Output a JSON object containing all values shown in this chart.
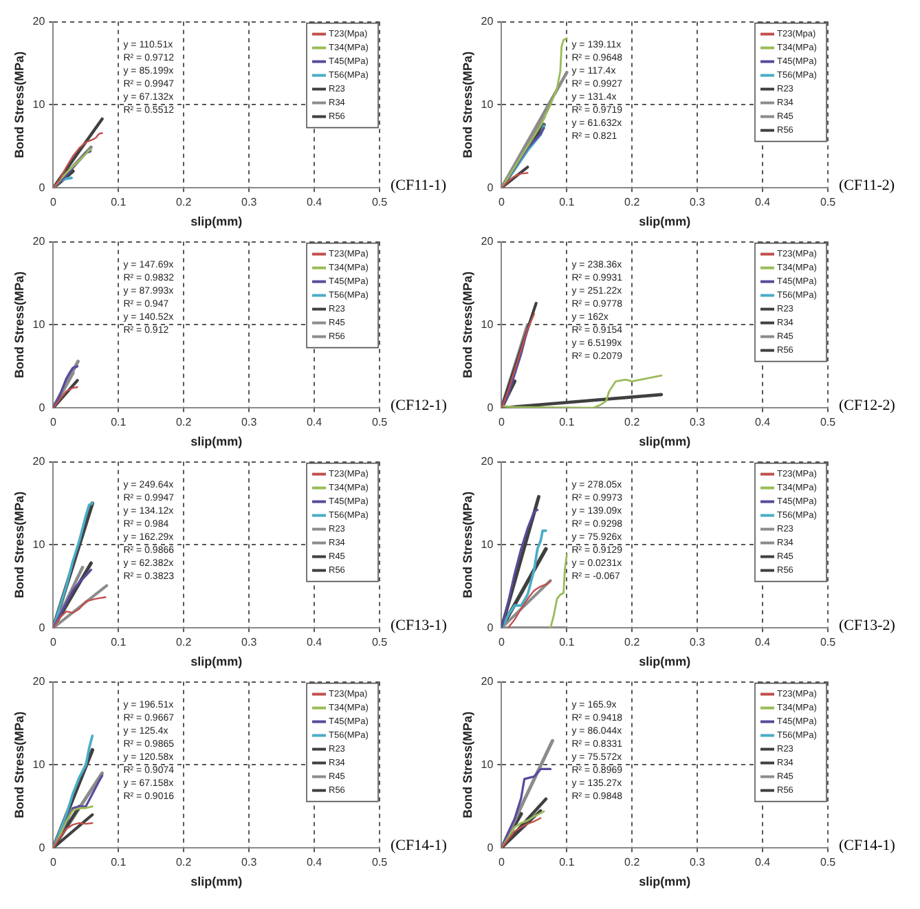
{
  "chart_data": [
    {
      "type": "line",
      "title": "(CF11-1)",
      "xlabel": "slip(mm)",
      "ylabel": "Bond Stress(MPa)",
      "xlim": [
        0,
        0.5
      ],
      "xticks": [
        0,
        0.1,
        0.2,
        0.3,
        0.4,
        0.5
      ],
      "ylim": [
        0,
        20
      ],
      "yticks": [
        0,
        10,
        20
      ],
      "grid": true,
      "legend": "top right",
      "marker": "none",
      "annotations": [
        "y = 110.51x",
        "R² = 0.9712",
        "y = 85.199x",
        "R² = 0.9947",
        "y = 67.132x",
        "R² = 0.5512"
      ],
      "series": [
        {
          "name": "T23(Mpa)",
          "color": "#c0504d",
          "x": [
            0,
            0.01,
            0.02,
            0.03,
            0.04,
            0.05,
            0.06,
            0.065,
            0.07,
            0.075
          ],
          "values": [
            0,
            1,
            2.5,
            3.8,
            4.8,
            5.5,
            5.8,
            6.0,
            6.5,
            6.6
          ]
        },
        {
          "name": "T34(MPa)",
          "color": "#9bbb59",
          "x": [
            0,
            0.02,
            0.04,
            0.055,
            0.058
          ],
          "values": [
            0,
            1.8,
            3.3,
            4.5,
            4.6
          ]
        },
        {
          "name": "T45(MPa)",
          "color": "#5a4a9c",
          "x": [
            0,
            0.02,
            0.05,
            0.057
          ],
          "values": [
            0,
            1.5,
            4.2,
            4.4
          ]
        },
        {
          "name": "T56(MPa)",
          "color": "#4bacc6",
          "x": [
            0,
            0.01,
            0.02,
            0.028
          ],
          "values": [
            0,
            0.8,
            1.1,
            1.2
          ]
        },
        {
          "name": "R23",
          "color": "#404040",
          "x": [
            0,
            0.075
          ],
          "values": [
            0,
            8.3
          ]
        },
        {
          "name": "R34",
          "color": "#8c8c8c",
          "x": [
            0,
            0.058
          ],
          "values": [
            0,
            4.9
          ]
        },
        {
          "name": "R56",
          "color": "#404040",
          "x": [
            0,
            0.03
          ],
          "values": [
            0,
            2.0
          ]
        }
      ]
    },
    {
      "type": "line",
      "title": "(CF11-2)",
      "xlabel": "slip(mm)",
      "ylabel": "Bond Stress(MPa)",
      "xlim": [
        0,
        0.5
      ],
      "xticks": [
        0,
        0.1,
        0.2,
        0.3,
        0.4,
        0.5
      ],
      "ylim": [
        0,
        20
      ],
      "yticks": [
        0,
        10,
        20
      ],
      "grid": true,
      "legend": "top right",
      "marker": "none",
      "annotations": [
        "y = 139.11x",
        "R² = 0.9648",
        "y = 117.4x",
        "R² = 0.9927",
        "y = 131.4x",
        "R² = 0.9719",
        "y = 61.632x",
        "R² = 0.821"
      ],
      "series": [
        {
          "name": "T23(Mpa)",
          "color": "#c0504d",
          "x": [
            0,
            0.01,
            0.02,
            0.03,
            0.04
          ],
          "values": [
            0,
            0.8,
            1.4,
            1.7,
            1.8
          ]
        },
        {
          "name": "T34(MPa)",
          "color": "#9bbb59",
          "x": [
            0,
            0.02,
            0.04,
            0.06,
            0.075,
            0.085,
            0.09,
            0.092,
            0.095,
            0.1
          ],
          "values": [
            0,
            2.5,
            5,
            7.5,
            10,
            12,
            14,
            17,
            17.8,
            18
          ]
        },
        {
          "name": "T45(MPa)",
          "color": "#5a4a9c",
          "x": [
            0,
            0.02,
            0.04,
            0.06,
            0.065
          ],
          "values": [
            0,
            2.4,
            4.8,
            6.5,
            7.2
          ]
        },
        {
          "name": "T56(MPa)",
          "color": "#4bacc6",
          "x": [
            0,
            0.02,
            0.04,
            0.06,
            0.065
          ],
          "values": [
            0,
            2.2,
            4.5,
            6.4,
            7.5
          ]
        },
        {
          "name": "R23",
          "color": "#404040",
          "x": [
            0,
            0.04
          ],
          "values": [
            0,
            2.5
          ]
        },
        {
          "name": "R34",
          "color": "#8c8c8c",
          "x": [
            0,
            0.1
          ],
          "values": [
            0,
            13.9
          ]
        },
        {
          "name": "R45",
          "color": "#8c8c8c",
          "x": [
            0,
            0.065
          ],
          "values": [
            0,
            8.5
          ]
        },
        {
          "name": "R56",
          "color": "#404040",
          "x": [
            0,
            0.065
          ],
          "values": [
            0,
            7.6
          ]
        }
      ]
    },
    {
      "type": "line",
      "title": "(CF12-1)",
      "xlabel": "slip(mm)",
      "ylabel": "Bond Stress(MPa)",
      "xlim": [
        0,
        0.5
      ],
      "xticks": [
        0,
        0.1,
        0.2,
        0.3,
        0.4,
        0.5
      ],
      "ylim": [
        0,
        20
      ],
      "yticks": [
        0,
        10,
        20
      ],
      "grid": true,
      "legend": "top right",
      "marker": "none",
      "annotations": [
        "y = 147.69x",
        "R² = 0.9832",
        "y = 87.993x",
        "R² = 0.947",
        "y = 140.52x",
        "R² = 0.912"
      ],
      "series": [
        {
          "name": "T23(MPa)",
          "color": "#c0504d",
          "x": [
            0,
            0.01,
            0.02,
            0.03,
            0.037
          ],
          "values": [
            0,
            1,
            2,
            2.4,
            2.5
          ]
        },
        {
          "name": "T34(MPa)",
          "color": "#9bbb59"
        },
        {
          "name": "T45(MPa)",
          "color": "#5a4a9c",
          "x": [
            0,
            0.01,
            0.02,
            0.025,
            0.03,
            0.037
          ],
          "values": [
            0,
            1.5,
            3.5,
            4.2,
            4.8,
            5.0
          ]
        },
        {
          "name": "T56(MPa)",
          "color": "#4bacc6"
        },
        {
          "name": "R23",
          "color": "#404040",
          "x": [
            0,
            0.037
          ],
          "values": [
            0,
            3.3
          ]
        },
        {
          "name": "R45",
          "color": "#8c8c8c",
          "x": [
            0,
            0.038
          ],
          "values": [
            0,
            5.6
          ]
        },
        {
          "name": "R56",
          "color": "#8c8c8c",
          "x": [
            0,
            0.03
          ],
          "values": [
            0,
            4.2
          ]
        }
      ]
    },
    {
      "type": "line",
      "title": "(CF12-2)",
      "xlabel": "slip(mm)",
      "ylabel": "Bond Stress(MPa)",
      "xlim": [
        0,
        0.5
      ],
      "xticks": [
        0,
        0.1,
        0.2,
        0.3,
        0.4,
        0.5
      ],
      "ylim": [
        0,
        20
      ],
      "yticks": [
        0,
        10,
        20
      ],
      "grid": true,
      "legend": "top right",
      "marker": "none",
      "annotations": [
        "y = 238.36x",
        "R² = 0.9931",
        "y = 251.22x",
        "R² = 0.9778",
        "y = 162x",
        "R² = 0.9154",
        "y = 6.5199x",
        "R² = 0.2079"
      ],
      "series": [
        {
          "name": "T23(MPa)",
          "color": "#c0504d",
          "x": [
            0,
            0.01,
            0.02,
            0.03,
            0.04,
            0.05
          ],
          "values": [
            0,
            2,
            4.5,
            7,
            9.5,
            11.3
          ]
        },
        {
          "name": "T34(MPa)",
          "color": "#9bbb59",
          "x": [
            0,
            0.02,
            0.14,
            0.15,
            0.16,
            0.165,
            0.175,
            0.19,
            0.2,
            0.22,
            0.245
          ],
          "values": [
            0.2,
            0.1,
            0,
            0.3,
            0.8,
            2,
            3.2,
            3.4,
            3.2,
            3.5,
            3.9
          ]
        },
        {
          "name": "T45(MPa)",
          "color": "#5a4a9c",
          "x": [
            0,
            0.01,
            0.02,
            0.03,
            0.04
          ],
          "values": [
            0,
            1.5,
            4,
            6.5,
            9.5
          ]
        },
        {
          "name": "T56(MPa)",
          "color": "#4bacc6"
        },
        {
          "name": "R23",
          "color": "#404040",
          "x": [
            0,
            0.053
          ],
          "values": [
            0,
            12.6
          ]
        },
        {
          "name": "R34",
          "color": "#404040",
          "x": [
            0,
            0.245
          ],
          "values": [
            0,
            1.6
          ]
        },
        {
          "name": "R45",
          "color": "#8c8c8c",
          "x": [
            0,
            0.04
          ],
          "values": [
            0,
            10.0
          ]
        },
        {
          "name": "R56",
          "color": "#404040",
          "x": [
            0,
            0.02
          ],
          "values": [
            0,
            3.2
          ]
        }
      ]
    },
    {
      "type": "line",
      "title": "(CF13-1)",
      "xlabel": "slip(mm)",
      "ylabel": "Bond Stress(MPa)",
      "xlim": [
        0,
        0.5
      ],
      "xticks": [
        0,
        0.1,
        0.2,
        0.3,
        0.4,
        0.5
      ],
      "ylim": [
        0,
        20
      ],
      "yticks": [
        0,
        10,
        20
      ],
      "grid": true,
      "legend": "top right",
      "marker": "none",
      "annotations": [
        "y = 249.64x",
        "R² = 0.9947",
        "y = 134.12x",
        "R² = 0.984",
        "y = 162.29x",
        "R² = 0.9866",
        "y = 62.382x",
        "R² = 0.3823"
      ],
      "series": [
        {
          "name": "T23(MPa)",
          "color": "#c0504d",
          "x": [
            0,
            0.01,
            0.02,
            0.03,
            0.04,
            0.05,
            0.065,
            0.08
          ],
          "values": [
            0,
            1.2,
            2,
            1.8,
            2.3,
            3.2,
            3.5,
            3.7
          ]
        },
        {
          "name": "T34(MPa)",
          "color": "#9bbb59"
        },
        {
          "name": "T45(MPa)",
          "color": "#5a4a9c",
          "x": [
            0,
            0.01,
            0.02,
            0.03,
            0.04,
            0.05,
            0.058
          ],
          "values": [
            0,
            1.5,
            3,
            4.5,
            5.5,
            6.3,
            7
          ]
        },
        {
          "name": "T56(MPa)",
          "color": "#4bacc6",
          "x": [
            0,
            0.01,
            0.02,
            0.03,
            0.04,
            0.05,
            0.055,
            0.06
          ],
          "values": [
            0,
            2.5,
            5,
            8,
            10.5,
            13.5,
            14.8,
            15
          ]
        },
        {
          "name": "R23",
          "color": "#8c8c8c",
          "x": [
            0,
            0.082
          ],
          "values": [
            0,
            5.1
          ]
        },
        {
          "name": "R34",
          "color": "#8c8c8c",
          "x": [
            0,
            0.045
          ],
          "values": [
            0,
            7.3
          ]
        },
        {
          "name": "R45",
          "color": "#404040",
          "x": [
            0,
            0.058
          ],
          "values": [
            0,
            7.8
          ]
        },
        {
          "name": "R56",
          "color": "#404040",
          "x": [
            0,
            0.06
          ],
          "values": [
            0,
            15.0
          ]
        }
      ]
    },
    {
      "type": "line",
      "title": "(CF13-2)",
      "xlabel": "slip(mm)",
      "ylabel": "Bond Stress(MPa)",
      "xlim": [
        0,
        0.5
      ],
      "xticks": [
        0,
        0.1,
        0.2,
        0.3,
        0.4,
        0.5
      ],
      "ylim": [
        0,
        20
      ],
      "yticks": [
        0,
        10,
        20
      ],
      "grid": true,
      "legend": "top right",
      "marker": "none",
      "annotations": [
        "y = 278.05x",
        "R² = 0.9973",
        "y = 139.09x",
        "R² = 0.9298",
        "y = 75.926x",
        "R² = 0.9129",
        "y = 0.0231x",
        "R² = -0.067"
      ],
      "series": [
        {
          "name": "T23(MPa)",
          "color": "#c0504d",
          "x": [
            0.01,
            0.02,
            0.03,
            0.04,
            0.05,
            0.06,
            0.07,
            0.075
          ],
          "values": [
            0,
            1,
            2.3,
            3.5,
            4.5,
            5,
            5.3,
            5.6
          ]
        },
        {
          "name": "T34(MPa)",
          "color": "#9bbb59",
          "x": [
            0.075,
            0.08,
            0.085,
            0.09,
            0.095,
            0.097,
            0.1
          ],
          "values": [
            0,
            1.5,
            3.5,
            4,
            4.2,
            7,
            8.8
          ]
        },
        {
          "name": "T45(MPa)",
          "color": "#5a4a9c",
          "x": [
            0,
            0.01,
            0.02,
            0.03,
            0.04,
            0.05,
            0.055
          ],
          "values": [
            0,
            3,
            6.5,
            9.5,
            12,
            14,
            14.2
          ]
        },
        {
          "name": "T56(MPa)",
          "color": "#4bacc6",
          "x": [
            0,
            0.01,
            0.02,
            0.03,
            0.04,
            0.05,
            0.055,
            0.06,
            0.063,
            0.068
          ],
          "values": [
            0,
            1.5,
            2.7,
            2.7,
            4,
            7,
            9.5,
            10.5,
            11.7,
            11.7
          ]
        },
        {
          "name": "R23",
          "color": "#8c8c8c",
          "x": [
            0,
            0.075
          ],
          "values": [
            0,
            5.7
          ]
        },
        {
          "name": "R34",
          "color": "#8c8c8c",
          "x": [
            0,
            0.1
          ],
          "values": [
            0,
            0.0
          ]
        },
        {
          "name": "R45",
          "color": "#404040",
          "x": [
            0,
            0.057
          ],
          "values": [
            0,
            15.8
          ]
        },
        {
          "name": "R56",
          "color": "#404040",
          "x": [
            0,
            0.068
          ],
          "values": [
            0,
            9.5
          ]
        }
      ]
    },
    {
      "type": "line",
      "title": "(CF14-1)",
      "xlabel": "slip(mm)",
      "ylabel": "Bond Stress(MPa)",
      "xlim": [
        0,
        0.5
      ],
      "xticks": [
        0,
        0.1,
        0.2,
        0.3,
        0.4,
        0.5
      ],
      "ylim": [
        0,
        20
      ],
      "yticks": [
        0,
        10,
        20
      ],
      "grid": true,
      "legend": "top right",
      "marker": "none",
      "annotations": [
        "y = 196.51x",
        "R² = 0.9667",
        "y = 125.4x",
        "R² = 0.9865",
        "y = 120.58x",
        "R² = 0.9074",
        "y = 67.158x",
        "R² = 0.9016"
      ],
      "series": [
        {
          "name": "T23(Mpa)",
          "color": "#c0504d",
          "x": [
            0,
            0.01,
            0.02,
            0.03,
            0.04,
            0.05,
            0.06
          ],
          "values": [
            0,
            1.2,
            2.3,
            2.8,
            3,
            2.9,
            3
          ]
        },
        {
          "name": "T34(MPa)",
          "color": "#9bbb59",
          "x": [
            0,
            0.01,
            0.02,
            0.03,
            0.04,
            0.05,
            0.06
          ],
          "values": [
            0,
            1.5,
            3.2,
            4.5,
            4.8,
            4.8,
            5
          ]
        },
        {
          "name": "T45(MPa)",
          "color": "#5a4a9c",
          "x": [
            0,
            0.01,
            0.02,
            0.03,
            0.04,
            0.05,
            0.06,
            0.07,
            0.075
          ],
          "values": [
            0,
            1.5,
            3,
            4.8,
            5,
            5,
            6.5,
            8,
            8.7
          ]
        },
        {
          "name": "T56(MPa)",
          "color": "#4bacc6",
          "x": [
            0,
            0.01,
            0.02,
            0.03,
            0.04,
            0.05,
            0.055,
            0.06
          ],
          "values": [
            0,
            2,
            4,
            6.5,
            8.5,
            10,
            12,
            13.5
          ]
        },
        {
          "name": "R23",
          "color": "#404040",
          "x": [
            0,
            0.06
          ],
          "values": [
            0,
            4.0
          ]
        },
        {
          "name": "R34",
          "color": "#404040",
          "x": [
            0,
            0.04
          ],
          "values": [
            0,
            5.0
          ]
        },
        {
          "name": "R45",
          "color": "#8c8c8c",
          "x": [
            0,
            0.075
          ],
          "values": [
            0,
            9.0
          ]
        },
        {
          "name": "R56",
          "color": "#404040",
          "x": [
            0,
            0.06
          ],
          "values": [
            0,
            11.8
          ]
        }
      ]
    },
    {
      "type": "line",
      "title": "(CF14-1)",
      "xlabel": "slip(mm)",
      "ylabel": "Bond Stress(MPa)",
      "xlim": [
        0,
        0.5
      ],
      "xticks": [
        0,
        0.1,
        0.2,
        0.3,
        0.4,
        0.5
      ],
      "ylim": [
        0,
        20
      ],
      "yticks": [
        0,
        10,
        20
      ],
      "grid": true,
      "legend": "top right",
      "marker": "none",
      "annotations": [
        "y = 165.9x",
        "R² = 0.9418",
        "y = 86.044x",
        "R² = 0.8331",
        "y = 75.572x",
        "R² = 0.8969",
        "y = 135.27x",
        "R² = 0.9848"
      ],
      "series": [
        {
          "name": "T23(MPa)",
          "color": "#c0504d",
          "x": [
            0,
            0.02,
            0.03,
            0.04,
            0.05,
            0.06
          ],
          "values": [
            0,
            2,
            2.5,
            2.9,
            3.2,
            3.6
          ]
        },
        {
          "name": "T34(MPa)",
          "color": "#9bbb59",
          "x": [
            0,
            0.02,
            0.03,
            0.04,
            0.05,
            0.06,
            0.065
          ],
          "values": [
            0,
            2.5,
            3,
            3.3,
            3.8,
            4.2,
            4.4
          ]
        },
        {
          "name": "T45(MPa)",
          "color": "#5a4a9c",
          "x": [
            0,
            0.01,
            0.02,
            0.03,
            0.035,
            0.05,
            0.06,
            0.075
          ],
          "values": [
            0,
            1.8,
            3.5,
            6,
            8.3,
            8.6,
            9.5,
            9.5
          ]
        },
        {
          "name": "T56(MPa)",
          "color": "#4bacc6"
        },
        {
          "name": "R23",
          "color": "#404040",
          "x": [
            0,
            0.06
          ],
          "values": [
            0,
            4.5
          ]
        },
        {
          "name": "R34",
          "color": "#404040",
          "x": [
            0,
            0.068
          ],
          "values": [
            0,
            5.9
          ]
        },
        {
          "name": "R45",
          "color": "#8c8c8c",
          "x": [
            0,
            0.078
          ],
          "values": [
            0,
            12.9
          ]
        },
        {
          "name": "R56",
          "color": "#404040",
          "x": [
            0,
            0.03
          ],
          "values": [
            0,
            4.1
          ]
        }
      ]
    }
  ]
}
